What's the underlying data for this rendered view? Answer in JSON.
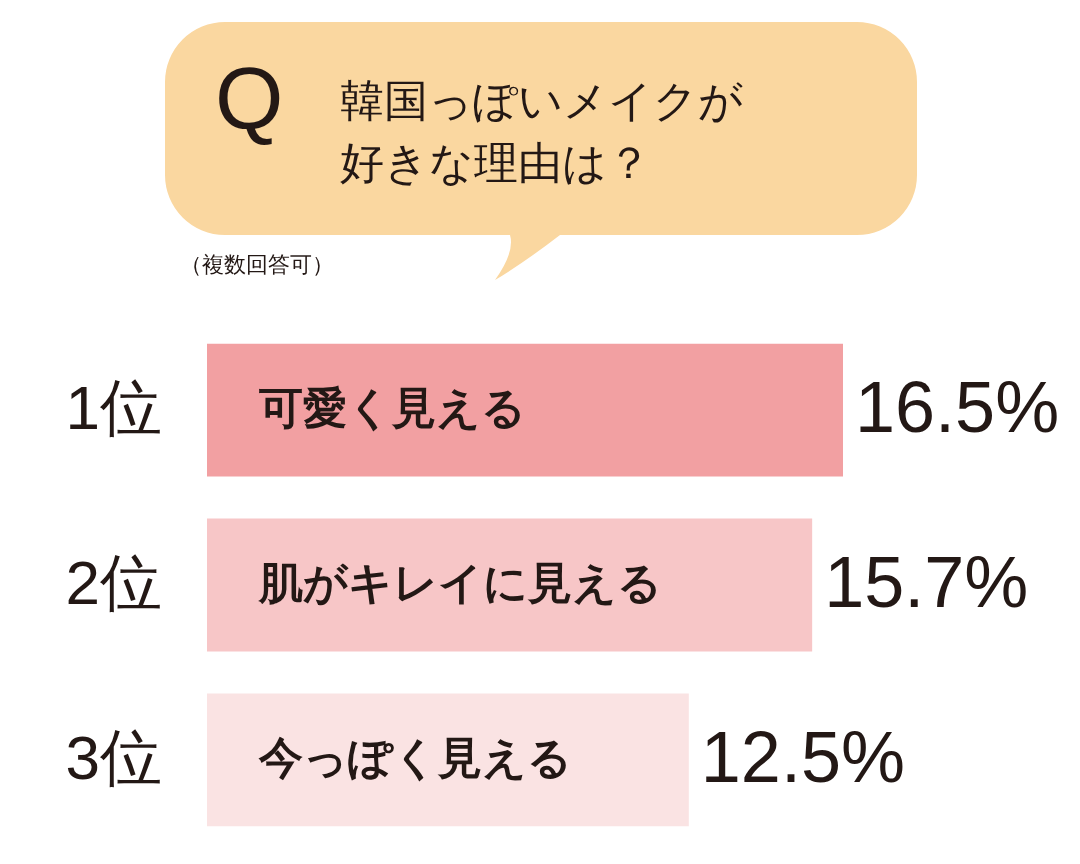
{
  "chart_data": {
    "type": "bar",
    "orientation": "horizontal",
    "title": "韓国っぽいメイクが好きな理由は？",
    "subtitle": "（複数回答可）",
    "categories": [
      "可愛く見える",
      "肌がキレイに見える",
      "今っぽく見える"
    ],
    "values": [
      16.5,
      15.7,
      12.5
    ],
    "value_labels": [
      "16.5%",
      "15.7%",
      "12.5%"
    ],
    "colors": [
      "#f2a0a2",
      "#f7c6c7",
      "#fae3e3"
    ],
    "annotations": [
      "Q",
      "1位",
      "2位",
      "3位"
    ]
  }
}
